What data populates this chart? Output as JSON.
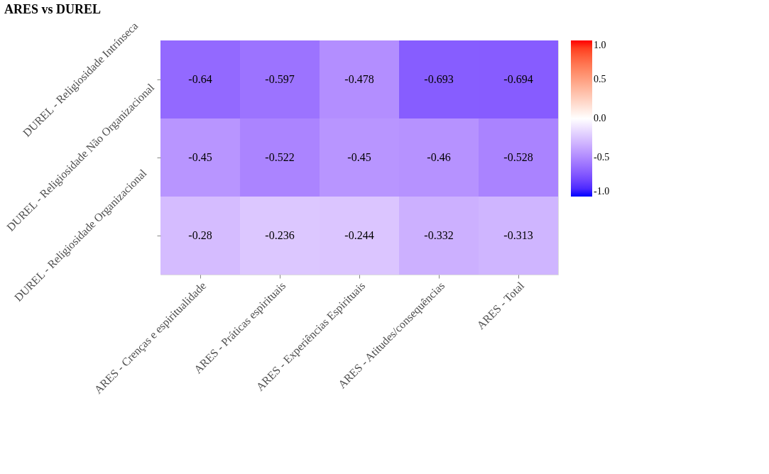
{
  "chart_data": {
    "type": "heatmap",
    "title": "ARES vs DUREL",
    "categories": [
      "ARES - Crenças e espiritualidade",
      "ARES - Práticas espirituais",
      "ARES - Experiências Espirituais",
      "ARES - Atitudes/consequências",
      "ARES - Total"
    ],
    "y_categories": [
      "DUREL - Religiosidade Intrínseca",
      "DUREL - Religiosidade Não Organizacional",
      "DUREL - Religiosidade Organizacional"
    ],
    "cells": [
      [
        -0.64,
        -0.597,
        -0.478,
        -0.693,
        -0.694
      ],
      [
        -0.45,
        -0.522,
        -0.45,
        -0.46,
        -0.528
      ],
      [
        -0.28,
        -0.236,
        -0.244,
        -0.332,
        -0.313
      ]
    ],
    "data_labels": true,
    "clim": [
      -1,
      1
    ],
    "cticks": [
      {
        "value": -1,
        "label": "-1.0"
      },
      {
        "value": -0.5,
        "label": "-0.5"
      },
      {
        "value": 0,
        "label": "0.0"
      },
      {
        "value": 0.5,
        "label": "0.5"
      },
      {
        "value": 1,
        "label": "1.0"
      }
    ],
    "colors": [
      "#0000ff",
      "#ffffff",
      "#ff0000"
    ]
  }
}
